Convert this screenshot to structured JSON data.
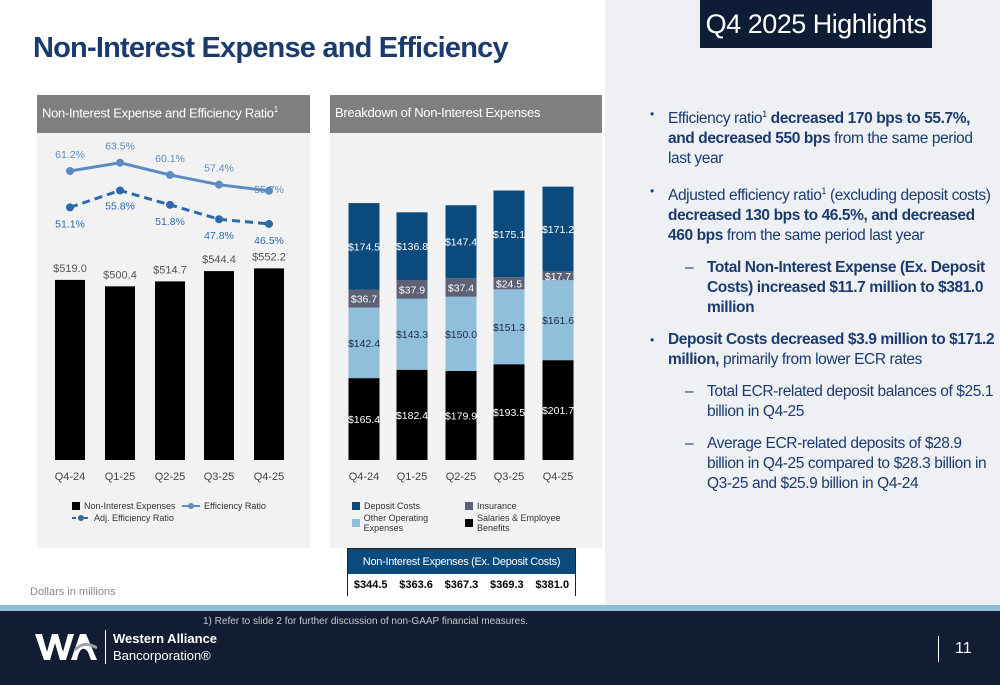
{
  "title": "Non-Interest Expense and Efficiency",
  "highlights_title": "Q4 2025 Highlights",
  "left_chart_title": "Non-Interest Expense and Efficiency Ratio",
  "right_chart_title": "Breakdown of Non-Interest Expenses",
  "footnote_marker": "1",
  "units": "Dollars in millions",
  "chart_data": [
    {
      "type": "bar+line",
      "categories": [
        "Q4-24",
        "Q1-25",
        "Q2-25",
        "Q3-25",
        "Q4-25"
      ],
      "series": [
        {
          "name": "Non-Interest Expenses",
          "type": "bar",
          "values": [
            519.0,
            500.4,
            514.7,
            544.4,
            552.2
          ],
          "labels": [
            "$519.0",
            "$500.4",
            "$514.7",
            "$544.4",
            "$552.2"
          ],
          "color": "#000000"
        },
        {
          "name": "Efficiency Ratio",
          "type": "line",
          "values": [
            61.2,
            63.5,
            60.1,
            57.4,
            55.7
          ],
          "labels": [
            "61.2%",
            "63.5%",
            "60.1%",
            "57.4%",
            "55.7%"
          ],
          "color": "#5b8bc0"
        },
        {
          "name": "Adj. Efficiency Ratio",
          "type": "line-dashed",
          "values": [
            51.1,
            55.8,
            51.8,
            47.8,
            46.5
          ],
          "labels": [
            "51.1%",
            "55.8%",
            "51.8%",
            "47.8%",
            "46.5%"
          ],
          "color": "#2c6aac"
        }
      ]
    },
    {
      "type": "stacked-bar",
      "categories": [
        "Q4-24",
        "Q1-25",
        "Q2-25",
        "Q3-25",
        "Q4-25"
      ],
      "series": [
        {
          "name": "Salaries & Employee Benefits",
          "values": [
            165.4,
            182.4,
            179.9,
            193.5,
            201.7
          ],
          "labels": [
            "$165.4",
            "$182.4",
            "$179.9",
            "$193.5",
            "$201.7"
          ],
          "color": "#000000",
          "text": "#ffffff"
        },
        {
          "name": "Other Operating Expenses",
          "values": [
            142.4,
            143.3,
            150.0,
            151.3,
            161.6
          ],
          "labels": [
            "$142.4",
            "$143.3",
            "$150.0",
            "$151.3",
            "$161.6"
          ],
          "color": "#8fbfdb",
          "text": "#1b2b44"
        },
        {
          "name": "Insurance",
          "values": [
            36.7,
            37.9,
            37.4,
            24.5,
            17.7
          ],
          "labels": [
            "$36.7",
            "$37.9",
            "$37.4",
            "$24.5",
            "$17.7"
          ],
          "color": "#5d6176",
          "text": "#ffffff"
        },
        {
          "name": "Deposit Costs",
          "values": [
            174.5,
            136.8,
            147.4,
            175.1,
            171.2
          ],
          "labels": [
            "$174.5",
            "$136.8",
            "$147.4",
            "$175.1",
            "$171.2"
          ],
          "color": "#0b4a7d",
          "text": "#ffffff"
        }
      ]
    }
  ],
  "legend_left": [
    "Non-Interest Expenses",
    "Efficiency Ratio",
    "Adj. Efficiency Ratio"
  ],
  "legend_right": [
    "Deposit Costs",
    "Insurance",
    "Other Operating Expenses",
    "Salaries & Employee Benefits"
  ],
  "table": {
    "header": "Non-Interest Expenses (Ex. Deposit Costs)",
    "values": [
      "$344.5",
      "$363.6",
      "$367.3",
      "$369.3",
      "$381.0"
    ]
  },
  "bullets": {
    "b1a": "Efficiency ratio",
    "b1b": " decreased 170 bps to 55.7%, and decreased 550 bps",
    "b1c": " from the same period last year",
    "b2a": "Adjusted efficiency ratio",
    "b2b": " (excluding deposit costs) ",
    "b2c": "decreased 130 bps to 46.5%, and decreased 460 bps",
    "b2d": " from the same period last year",
    "s1": "Total Non-Interest Expense (Ex. Deposit Costs) increased $11.7 million to $381.0 million",
    "b3a": "Deposit Costs decreased $3.9 million to $171.2 million,",
    "b3b": " primarily from lower ECR rates",
    "s2": "Total ECR-related deposit balances of $25.1 billion in Q4-25",
    "s3": "Average ECR-related deposits of $28.9 billion in Q4-25 compared to $28.3 billion in Q3-25 and $25.9 billion in Q4-24"
  },
  "footer": {
    "footnote": "1)    Refer to slide 2 for further discussion of non-GAAP financial measures.",
    "logo_text": "WA",
    "company_line1": "Western Alliance",
    "company_line2": "Bancorporation®",
    "page": "11"
  }
}
